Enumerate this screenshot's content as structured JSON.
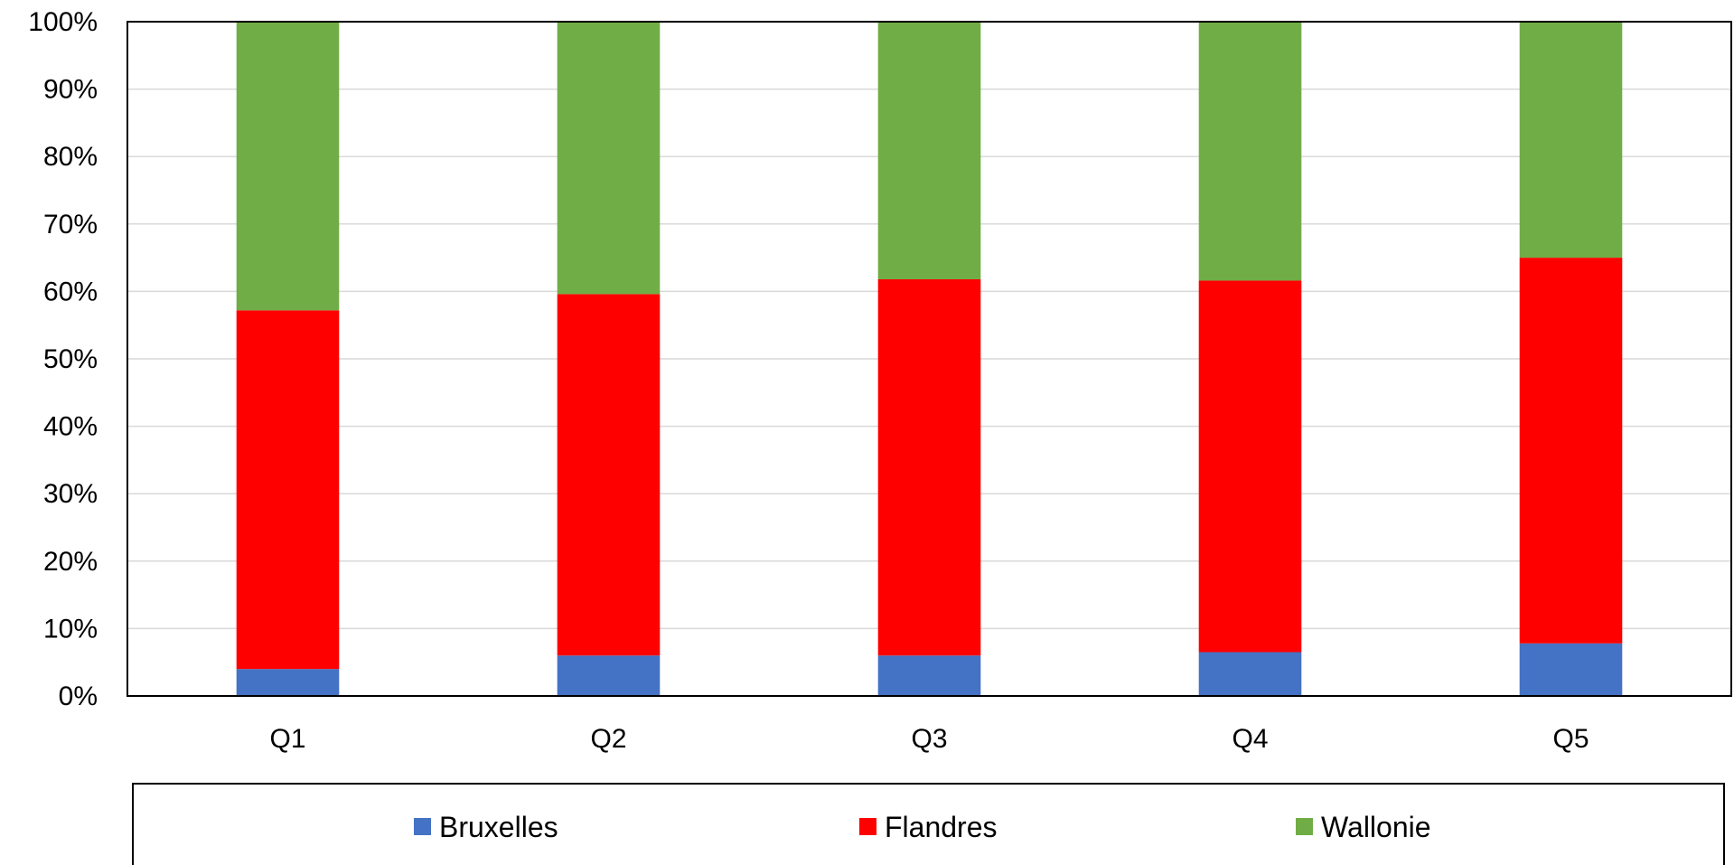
{
  "chart_data": {
    "type": "bar",
    "stacked": true,
    "percent_stacked": true,
    "categories": [
      "Q1",
      "Q2",
      "Q3",
      "Q4",
      "Q5"
    ],
    "series": [
      {
        "name": "Bruxelles",
        "color": "#4472C4",
        "values": [
          4,
          6,
          6,
          6.5,
          7.8
        ]
      },
      {
        "name": "Flandres",
        "color": "#FF0000",
        "values": [
          53.2,
          53.6,
          55.8,
          55.1,
          57.2
        ]
      },
      {
        "name": "Wallonie",
        "color": "#70AD47",
        "values": [
          42.8,
          40.4,
          38.2,
          38.4,
          35
        ]
      }
    ],
    "yticks": [
      "0%",
      "10%",
      "20%",
      "30%",
      "40%",
      "50%",
      "60%",
      "70%",
      "80%",
      "90%",
      "100%"
    ],
    "ylim": [
      0,
      100
    ],
    "grid": true,
    "legend_position": "bottom"
  }
}
